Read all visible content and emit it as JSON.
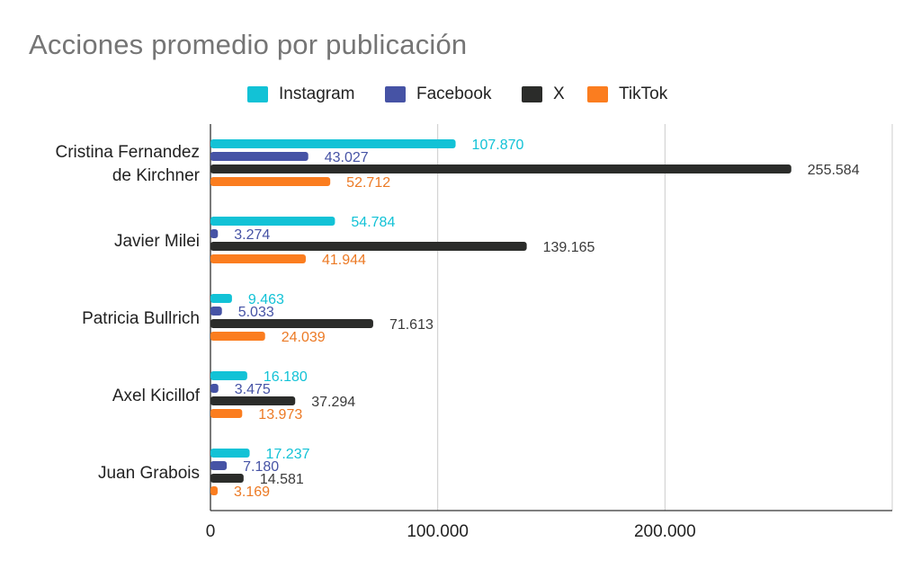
{
  "chart_data": {
    "type": "bar",
    "orientation": "horizontal",
    "title": "Acciones promedio por publicación",
    "xlabel": "",
    "ylabel": "",
    "categories": [
      "Cristina Fernandez\nde Kirchner",
      "Javier Milei",
      "Patricia Bullrich",
      "Axel Kicillof",
      "Juan Grabois"
    ],
    "series": [
      {
        "name": "Instagram",
        "color": "#12c2d6",
        "values": [
          107870,
          54784,
          9463,
          16180,
          17237
        ],
        "labels": [
          "107.870",
          "54.784",
          "9.463",
          "16.180",
          "17.237"
        ]
      },
      {
        "name": "Facebook",
        "color": "#4653a5",
        "values": [
          43027,
          3274,
          5033,
          3475,
          7180
        ],
        "labels": [
          "43.027",
          "3.274",
          "5.033",
          "3.475",
          "7.180"
        ]
      },
      {
        "name": "X",
        "color": "#2b2c2a",
        "values": [
          255584,
          139165,
          71613,
          37294,
          14581
        ],
        "labels": [
          "255.584",
          "139.165",
          "71.613",
          "37.294",
          "14.581"
        ]
      },
      {
        "name": "TikTok",
        "color": "#fb7d1f",
        "values": [
          52712,
          41944,
          24039,
          13973,
          3169
        ],
        "labels": [
          "52.712",
          "41.944",
          "24.039",
          "13.973",
          "3.169"
        ]
      }
    ],
    "xlim": [
      0,
      300000
    ],
    "ticks": [
      0,
      100000,
      200000
    ],
    "tick_labels": [
      "0",
      "100.000",
      "200.000"
    ],
    "grid": true,
    "legend_position": "top-center",
    "label_colors": [
      "#12c2d6",
      "#4653a5",
      "#3a3a3a",
      "#ec7a25"
    ]
  }
}
